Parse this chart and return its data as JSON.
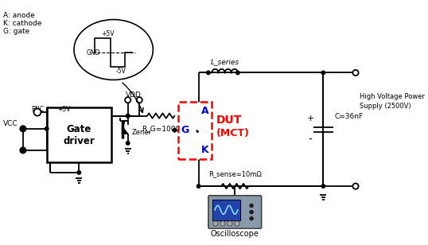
{
  "bg_color": "#ffffff",
  "labels": {
    "anode": "A: anode",
    "cathode": "K: cathode",
    "gate": "G: gate",
    "bnc": "BNC",
    "p5v_bnc": "+5V",
    "vcc": "VCC",
    "vdd": "VDD",
    "zener": "Zener",
    "gate_driver": "Gate\ndriver",
    "rg": "R_G=100Ω",
    "lseries": "L_series",
    "c": "C=36nF",
    "rsense": "R_sense=10mΩ",
    "hvps": "High Voltage Power\nSupply (2500V)",
    "oscilloscope": "Oscilloscope",
    "gnd_pulse": "GND",
    "p5v_pulse": "+5V",
    "m5v_pulse": "-5V",
    "a_label": "A",
    "g_label": "G",
    "k_label": "K",
    "plus": "+",
    "minus": "-"
  },
  "colors": {
    "black": "#000000",
    "red": "#ff0000",
    "blue": "#0000cc",
    "scope_bg": "#7799bb"
  }
}
